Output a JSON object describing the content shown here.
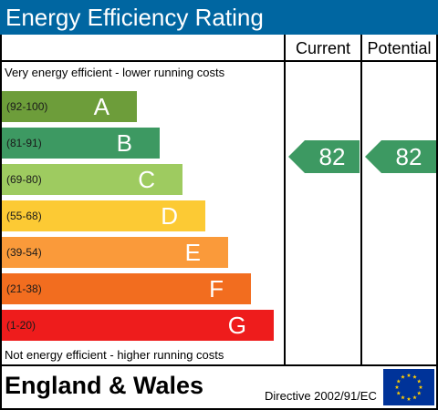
{
  "title": "Energy Efficiency Rating",
  "headers": {
    "current": "Current",
    "potential": "Potential"
  },
  "top_caption": "Very energy efficient - lower running costs",
  "bottom_caption": "Not energy efficient - higher running costs",
  "footer": {
    "region": "England & Wales",
    "directive": "Directive 2002/91/EC"
  },
  "icons": {
    "eu_flag": "eu-flag-icon"
  },
  "colors": {
    "title_bar": "#0066a1"
  },
  "chart_data": {
    "type": "bar",
    "title": "Energy Efficiency Rating",
    "categories": [
      "A",
      "B",
      "C",
      "D",
      "E",
      "F",
      "G"
    ],
    "ranges": [
      "(92-100)",
      "(81-91)",
      "(69-80)",
      "(55-68)",
      "(39-54)",
      "(21-38)",
      "(1-20)"
    ],
    "colors": [
      "#008054",
      "#19b459",
      "#8dce46",
      "#ffd500",
      "#fcaa65",
      "#ef8023",
      "#e9153b"
    ],
    "band_colors": [
      "#6d9d3a",
      "#3d9962",
      "#9ecb60",
      "#fcca34",
      "#fa9a3a",
      "#f26d1f",
      "#ee1c1c"
    ],
    "current": {
      "label": "Current",
      "value": 82,
      "band": "B",
      "color": "#3d9962"
    },
    "potential": {
      "label": "Potential",
      "value": 82,
      "band": "B",
      "color": "#3d9962"
    }
  }
}
